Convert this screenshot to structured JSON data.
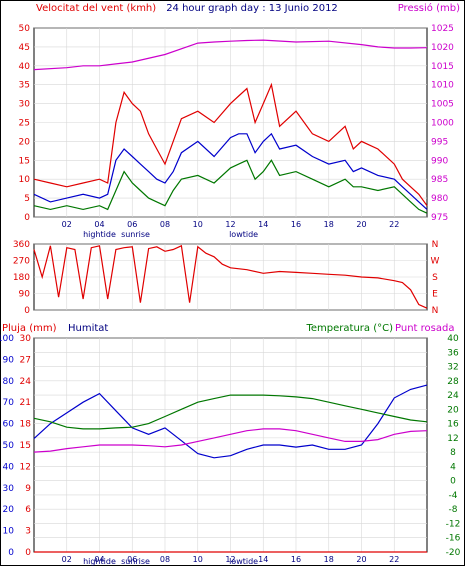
{
  "chart_data": [
    {
      "type": "line",
      "title": "24 hour graph day : 13 Junio 2012",
      "ylabel": "Velocitat del vent (kmh)",
      "y2label": "Pressió (mb)",
      "xlim": [
        0,
        24
      ],
      "ylim": [
        0,
        50
      ],
      "y2lim": [
        975,
        1025
      ],
      "yticks": [
        "0",
        "5",
        "10",
        "15",
        "20",
        "25",
        "30",
        "35",
        "40",
        "45",
        "50"
      ],
      "y2ticks": [
        "975",
        "980",
        "985",
        "990",
        "995",
        "1000",
        "1005",
        "1010",
        "1015",
        "1020",
        "1025"
      ],
      "xticks": [
        "02",
        "04",
        "06",
        "08",
        "10",
        "12",
        "14",
        "16",
        "18",
        "20",
        "22"
      ],
      "annotations": [
        "hightide",
        "sunrise",
        "lowtide"
      ],
      "colors": {
        "gust": "#e00000",
        "avg": "#0000cc",
        "low": "#007700",
        "pressure": "#cc00cc"
      },
      "series": [
        {
          "key": "gust",
          "x": [
            0,
            1,
            2,
            3,
            4,
            4.5,
            5,
            5.5,
            6,
            6.5,
            7,
            7.5,
            8,
            8.5,
            9,
            10,
            11,
            12,
            12.5,
            13,
            13.5,
            14,
            14.5,
            15,
            16,
            17,
            18,
            19,
            19.5,
            20,
            21,
            22,
            22.5,
            23,
            23.5,
            24
          ],
          "y": [
            10,
            9,
            8,
            9,
            10,
            9,
            25,
            33,
            30,
            28,
            22,
            18,
            14,
            20,
            26,
            28,
            25,
            30,
            32,
            34,
            25,
            30,
            35,
            24,
            28,
            22,
            20,
            24,
            18,
            20,
            18,
            14,
            10,
            8,
            6,
            3
          ]
        },
        {
          "key": "avg",
          "x": [
            0,
            1,
            2,
            3,
            4,
            4.5,
            5,
            5.5,
            6,
            6.5,
            7,
            7.5,
            8,
            8.5,
            9,
            10,
            11,
            12,
            12.5,
            13,
            13.5,
            14,
            14.5,
            15,
            16,
            17,
            18,
            19,
            19.5,
            20,
            21,
            22,
            22.5,
            23,
            23.5,
            24
          ],
          "y": [
            6,
            4,
            5,
            6,
            5,
            6,
            15,
            18,
            16,
            14,
            12,
            10,
            9,
            12,
            17,
            20,
            16,
            21,
            22,
            22,
            17,
            20,
            22,
            18,
            19,
            16,
            14,
            15,
            12,
            13,
            11,
            10,
            8,
            6,
            4,
            2
          ]
        },
        {
          "key": "low",
          "x": [
            0,
            1,
            2,
            3,
            4,
            4.5,
            5,
            5.5,
            6,
            6.5,
            7,
            7.5,
            8,
            8.5,
            9,
            10,
            11,
            12,
            12.5,
            13,
            13.5,
            14,
            14.5,
            15,
            16,
            17,
            18,
            19,
            19.5,
            20,
            21,
            22,
            22.5,
            23,
            23.5,
            24
          ],
          "y": [
            3,
            2,
            3,
            2,
            3,
            2,
            7,
            12,
            9,
            7,
            5,
            4,
            3,
            7,
            10,
            11,
            9,
            13,
            14,
            15,
            10,
            12,
            15,
            11,
            12,
            10,
            8,
            10,
            8,
            8,
            7,
            8,
            6,
            4,
            2,
            1
          ]
        },
        {
          "key": "pressure",
          "x": [
            0,
            2,
            3,
            4,
            5,
            6,
            8,
            10,
            11,
            12,
            13,
            14,
            16,
            18,
            20,
            21,
            22,
            23,
            24
          ],
          "y2": [
            1014,
            1014.5,
            1015,
            1015,
            1015.5,
            1016,
            1018,
            1021,
            1021.3,
            1021.5,
            1021.7,
            1021.8,
            1021.3,
            1021.5,
            1020.6,
            1020,
            1019.7,
            1019.7,
            1019.8
          ]
        }
      ]
    },
    {
      "type": "line",
      "xlim": [
        0,
        24
      ],
      "ylim": [
        0,
        360
      ],
      "yticks": [
        "0",
        "90",
        "180",
        "270",
        "360"
      ],
      "y2ticks": [
        "N",
        "W",
        "S",
        "E",
        "N"
      ],
      "xticks": [
        "02",
        "04",
        "06",
        "08",
        "10",
        "12",
        "14",
        "16",
        "18",
        "20",
        "22"
      ],
      "colors": {
        "direction": "#e00000"
      },
      "series": [
        {
          "key": "direction",
          "x": [
            0,
            0.5,
            1,
            1.5,
            2,
            2.5,
            3,
            3.5,
            4,
            4.5,
            5,
            5.5,
            6,
            6.5,
            7,
            7.5,
            8,
            8.5,
            9,
            9.5,
            10,
            10.5,
            11,
            11.5,
            12,
            13,
            14,
            15,
            16,
            17,
            18,
            19,
            20,
            21,
            22,
            22.5,
            23,
            23.5,
            24
          ],
          "y": [
            330,
            180,
            350,
            70,
            340,
            330,
            60,
            340,
            350,
            60,
            330,
            340,
            345,
            40,
            335,
            345,
            320,
            330,
            350,
            40,
            345,
            310,
            290,
            250,
            230,
            220,
            200,
            210,
            205,
            200,
            195,
            190,
            180,
            175,
            160,
            150,
            110,
            30,
            10
          ]
        }
      ]
    },
    {
      "type": "line",
      "ylabel": "Pluja (mm)",
      "y2label": "Temperatura (°C)",
      "legend": [
        "Humitat",
        "Punt rosada"
      ],
      "xlim": [
        0,
        24
      ],
      "temp_lim": [
        -20,
        40
      ],
      "rain_lim": [
        0,
        30
      ],
      "hum_lim": [
        0,
        100
      ],
      "rain_ticks": [
        "0",
        "3",
        "6",
        "9",
        "12",
        "15",
        "18",
        "21",
        "24",
        "27",
        "30"
      ],
      "hum_ticks": [
        "0",
        "10",
        "20",
        "30",
        "40",
        "50",
        "60",
        "70",
        "80",
        "90",
        "100"
      ],
      "temp_ticks": [
        "-20",
        "-16",
        "-12",
        "-8",
        "-4",
        "0",
        "4",
        "8",
        "12",
        "16",
        "20",
        "24",
        "28",
        "32",
        "36",
        "40"
      ],
      "xticks": [
        "02",
        "04",
        "06",
        "08",
        "10",
        "12",
        "14",
        "16",
        "18",
        "20",
        "22"
      ],
      "annotations": [
        "hightide",
        "sunrise",
        "lowtide"
      ],
      "colors": {
        "humidity": "#0000cc",
        "temperature": "#007700",
        "dewpoint": "#cc00cc",
        "rain": "#e00000"
      },
      "series": [
        {
          "key": "humidity",
          "x": [
            0,
            1,
            2,
            3,
            4,
            5,
            6,
            7,
            8,
            9,
            10,
            11,
            12,
            13,
            14,
            15,
            16,
            17,
            18,
            19,
            20,
            21,
            22,
            23,
            24
          ],
          "y": [
            53,
            60,
            65,
            70,
            74,
            66,
            58,
            55,
            58,
            52,
            46,
            44,
            45,
            48,
            50,
            50,
            49,
            50,
            48,
            48,
            50,
            60,
            72,
            76,
            78
          ]
        },
        {
          "key": "temperature",
          "x": [
            0,
            1,
            2,
            3,
            4,
            5,
            6,
            7,
            8,
            9,
            10,
            11,
            12,
            13,
            14,
            15,
            16,
            17,
            18,
            19,
            20,
            21,
            22,
            23,
            24
          ],
          "y": [
            17.5,
            16.5,
            15,
            14.5,
            14.5,
            14.8,
            15,
            16,
            18,
            20,
            22,
            23,
            24,
            24,
            24,
            23.8,
            23.5,
            23,
            22,
            21,
            20,
            19,
            18,
            17,
            16.5
          ]
        },
        {
          "key": "dewpoint",
          "x": [
            0,
            1,
            2,
            3,
            4,
            5,
            6,
            7,
            8,
            9,
            10,
            11,
            12,
            13,
            14,
            15,
            16,
            17,
            18,
            19,
            20,
            21,
            22,
            23,
            24
          ],
          "y": [
            8,
            8.3,
            9,
            9.5,
            10,
            10,
            10,
            9.8,
            9.5,
            10,
            11,
            12,
            13,
            14,
            14.5,
            14.5,
            14,
            13,
            12,
            11,
            11,
            11.5,
            13,
            13.8,
            14
          ]
        },
        {
          "key": "rain",
          "x": [
            0,
            24
          ],
          "y": [
            0,
            0
          ]
        }
      ]
    }
  ]
}
